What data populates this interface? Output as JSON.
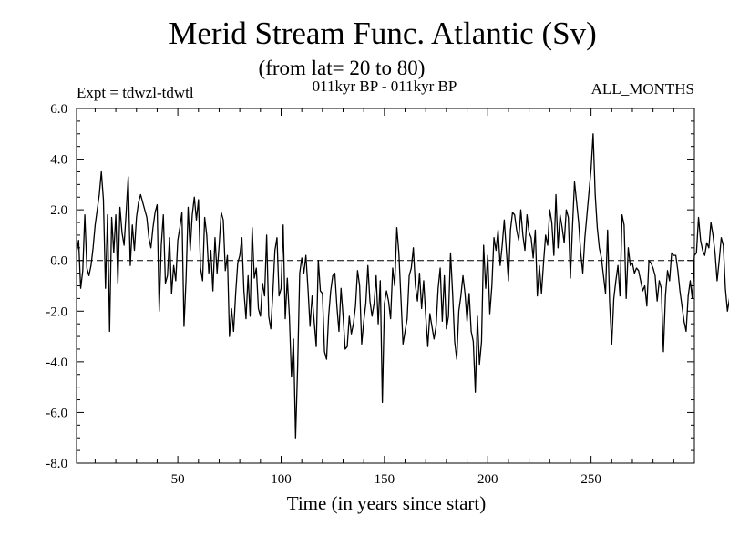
{
  "chart_data": {
    "type": "line",
    "title": "Merid Stream Func. Atlantic (Sv)",
    "subtitle": "(from lat= 20 to 80)",
    "annotations": {
      "left": "Expt = tdwzl-tdwtl",
      "center": "011kyr BP - 011kyr BP",
      "right": "ALL_MONTHS"
    },
    "xlabel": "Time (in years since start)",
    "ylabel": "",
    "xlim": [
      1,
      300
    ],
    "ylim": [
      -8,
      6
    ],
    "x_ticks": [
      50,
      100,
      150,
      200,
      250
    ],
    "x_tick_labels": [
      "50",
      "100",
      "150",
      "200",
      "250"
    ],
    "y_ticks": [
      -8,
      -6,
      -4,
      -2,
      0,
      2,
      4,
      6
    ],
    "y_tick_labels": [
      "-8.0",
      "-6.0",
      "-4.0",
      "-2.0",
      "0.0",
      "2.0",
      "4.0",
      "6.0"
    ],
    "zero_line": true,
    "grid": false,
    "line_color": "#000000",
    "x_start": 1,
    "x_step": 1,
    "values": [
      0.3,
      0.8,
      -1.1,
      -0.4,
      1.8,
      -0.3,
      -0.6,
      -0.2,
      0.5,
      1.4,
      2.0,
      2.6,
      3.5,
      2.4,
      -1.1,
      1.8,
      -2.8,
      1.7,
      0.3,
      1.8,
      -0.9,
      2.1,
      1.1,
      0.6,
      1.9,
      3.3,
      -0.2,
      1.4,
      0.4,
      1.7,
      2.3,
      2.6,
      2.3,
      2.0,
      1.7,
      0.9,
      0.5,
      1.3,
      1.9,
      2.2,
      -2.0,
      0.6,
      1.8,
      -0.9,
      -0.6,
      0.9,
      -1.3,
      -0.2,
      -0.8,
      0.8,
      1.3,
      1.9,
      -2.6,
      -0.7,
      2.1,
      0.4,
      1.8,
      2.5,
      1.6,
      2.4,
      -0.3,
      -0.8,
      1.7,
      1.0,
      -0.5,
      0.4,
      -1.2,
      0.9,
      -0.5,
      0.6,
      1.9,
      1.6,
      -0.4,
      0.2,
      -3.0,
      -1.9,
      -2.8,
      -1.3,
      -0.1,
      0.2,
      0.9,
      -1.2,
      -2.3,
      -0.6,
      -2.2,
      1.3,
      -0.7,
      -0.3,
      -1.9,
      -2.2,
      -0.9,
      -1.4,
      1.0,
      -2.2,
      -2.7,
      -1.3,
      0.4,
      0.9,
      -1.4,
      -1.1,
      1.4,
      -2.3,
      -0.7,
      -2.2,
      -4.6,
      -3.1,
      -7.0,
      -4.2,
      -0.5,
      0.1,
      -0.5,
      0.2,
      -1.1,
      -2.6,
      -1.4,
      -2.4,
      -3.4,
      0.0,
      -1.2,
      -1.3,
      -3.6,
      -3.9,
      -2.2,
      -1.2,
      -0.6,
      -0.5,
      -1.8,
      -2.8,
      -1.1,
      -2.2,
      -3.5,
      -3.4,
      -2.2,
      -2.9,
      -2.5,
      -1.8,
      -0.4,
      -1.0,
      -3.3,
      -2.4,
      -1.7,
      -0.2,
      -1.6,
      -2.2,
      -1.7,
      -0.6,
      -2.5,
      -0.8,
      -5.6,
      -1.7,
      -1.2,
      -1.6,
      -2.3,
      -0.3,
      -1.0,
      1.3,
      0.3,
      -1.5,
      -3.3,
      -2.8,
      -2.3,
      -0.6,
      -0.3,
      0.5,
      -1.0,
      -1.6,
      -0.5,
      -1.9,
      -0.8,
      -2.2,
      -3.4,
      -2.1,
      -2.6,
      -3.1,
      -2.6,
      -1.1,
      -0.3,
      -2.4,
      -0.6,
      -2.7,
      -2.2,
      0.3,
      -1.3,
      -3.2,
      -3.9,
      -2.0,
      -1.4,
      -0.6,
      -1.3,
      -2.4,
      -1.3,
      -2.8,
      -3.2,
      -5.2,
      -2.2,
      -4.1,
      -3.2,
      0.6,
      -1.1,
      0.2,
      -2.1,
      -1.0,
      0.9,
      0.4,
      1.2,
      -0.2,
      0.6,
      1.6,
      0.4,
      -0.8,
      1.2,
      1.9,
      1.8,
      1.2,
      0.8,
      2.0,
      1.0,
      0.4,
      1.8,
      1.1,
      0.9,
      0.1,
      1.2,
      -1.4,
      -0.2,
      -1.3,
      -0.1,
      1.0,
      0.6,
      2.0,
      1.5,
      0.2,
      2.6,
      0.5,
      1.8,
      1.3,
      0.7,
      2.0,
      1.7,
      -0.7,
      1.3,
      3.1,
      2.3,
      1.5,
      0.3,
      -0.5,
      0.9,
      1.8,
      2.7,
      3.6,
      5.0,
      2.6,
      1.3,
      0.5,
      0.1,
      -0.6,
      -1.3,
      1.2,
      -1.7,
      -3.3,
      -1.5,
      -0.8,
      -0.2,
      -1.4,
      1.8,
      1.4,
      -1.5,
      0.5,
      -0.2,
      -0.1,
      -0.5,
      -0.3,
      -0.4,
      -0.8,
      -1.2,
      -1.0,
      -1.8,
      0.0,
      -0.1,
      -0.3,
      -0.6,
      -1.6,
      -0.8,
      -1.1,
      -3.6,
      -1.4,
      -0.4,
      -0.8,
      0.3,
      0.2,
      0.2,
      -0.4,
      -1.2,
      -1.8,
      -2.4,
      -2.8,
      -1.4,
      -0.8,
      -1.5,
      0.2,
      0.3,
      1.7,
      0.8,
      0.4,
      0.2,
      0.7,
      0.5,
      1.5,
      1.0,
      0.3,
      -0.8,
      0.0,
      0.9,
      0.6,
      -1.1,
      -2.0,
      -1.5,
      -0.2,
      -2.2,
      -1.7,
      -2.6,
      -1.7,
      -1.0,
      -0.7,
      -0.5,
      -1.3,
      -2.4,
      -1.3,
      -0.9,
      -2.8,
      -3.1,
      -0.6,
      -1.9,
      -0.5,
      -0.3,
      0.2,
      -0.8,
      -1.4,
      -2.5,
      -1.6,
      -0.8,
      -2.0,
      -3.2,
      -2.6,
      -1.4,
      -2.1,
      -2.6,
      -3.4,
      -4.3,
      -3.2,
      -2.8,
      -1.9,
      -1.0,
      -0.4,
      -1.2,
      -2.3,
      -3.0,
      -1.5,
      -0.9,
      -1.8,
      -2.4,
      -2.7,
      -3.5,
      -4.6,
      -3.1,
      -2.1,
      -2.8,
      -3.9,
      -2.5,
      -1.4,
      -0.5,
      -0.7,
      -1.0,
      -0.9,
      -2.3,
      -2.9,
      -1.1,
      -0.7,
      -1.6,
      -2.0,
      -3.3,
      -2.4,
      -1.3,
      -0.8,
      -0.7,
      -1.9,
      -2.3,
      -2.5,
      -1.8,
      -2.6,
      -1.2,
      -1.9,
      -2.4,
      -1.6,
      -2.1,
      -4.1,
      -3.0,
      -0.9,
      -0.2,
      1.8,
      1.1,
      0.5,
      0.3,
      -0.2,
      0.8,
      1.6,
      2.1,
      1.1,
      1.5,
      2.8,
      2.1,
      0.6,
      2.2,
      1.0,
      1.9,
      2.0,
      0.9,
      2.2,
      1.6,
      1.0,
      0.4,
      1.5,
      0.7,
      1.6,
      2.1,
      3.6,
      4.1,
      2.9,
      3.8,
      1.7,
      2.3,
      0.3,
      0.8,
      3.4,
      2.2,
      1.6,
      0.4,
      0.2,
      2.8,
      1.2,
      0.5,
      1.3,
      5.2,
      3.8,
      2.8,
      1.7,
      0.3,
      1.1,
      4.3,
      1.6,
      2.9,
      1.6,
      2.6,
      0.5,
      1.4,
      3.1,
      2.0,
      1.0,
      0.5,
      1.1,
      2.0,
      1.7,
      0.8,
      1.2,
      4.0,
      0.8,
      0.5,
      1.4,
      2.8,
      0.7,
      1.5,
      2.0,
      0.8,
      1.8,
      1.3,
      4.5,
      1.5,
      0.3,
      2.2,
      4.2,
      1.0,
      1.6,
      0.4,
      0.5,
      0.9,
      2.5,
      0.9,
      4.8,
      2.3,
      1.0,
      0.4,
      1.6,
      5.0,
      2.6,
      1.4,
      0.5,
      0.0,
      -0.2,
      -1.7,
      -0.5,
      -0.9,
      -1.3,
      -0.6,
      -0.8,
      -0.1,
      0.4,
      -0.4,
      0.5,
      1.8,
      1.3
    ]
  }
}
